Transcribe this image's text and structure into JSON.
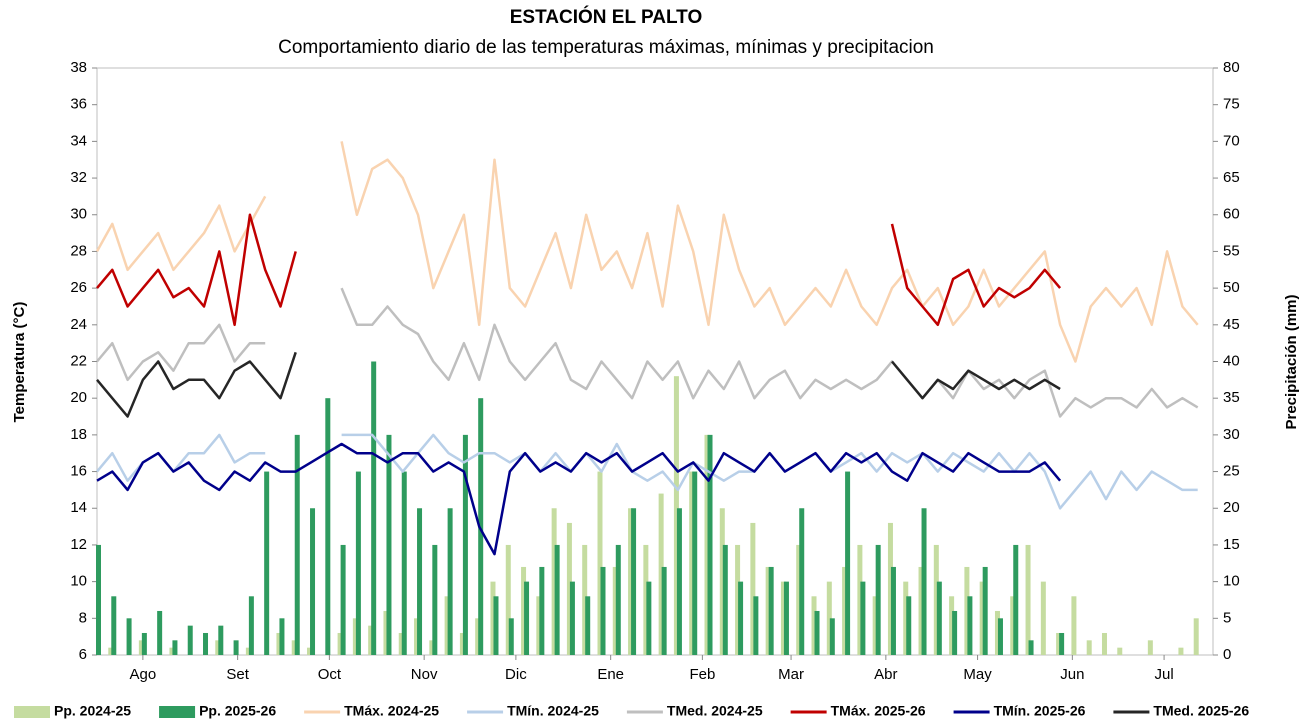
{
  "chart_data": {
    "type": "line",
    "title": "ESTACIÓN EL PALTO",
    "subtitle": "Comportamiento diario de las temperaturas máximas, mínimas y precipitacion",
    "y_label": "Temperatura (°C)",
    "y2_label": "Precipitación (mm)",
    "x": [
      0,
      5,
      10,
      15,
      20,
      25,
      30,
      35,
      40,
      45,
      50,
      55,
      60,
      65,
      70,
      75,
      80,
      85,
      90,
      95,
      100,
      105,
      110,
      115,
      120,
      125,
      130,
      135,
      140,
      145,
      150,
      155,
      160,
      165,
      170,
      175,
      180,
      185,
      190,
      195,
      200,
      205,
      210,
      215,
      220,
      225,
      230,
      235,
      240,
      245,
      250,
      255,
      260,
      265,
      270,
      275,
      280,
      285,
      290,
      295,
      300,
      305,
      310,
      315,
      320,
      325,
      330,
      335,
      340,
      345,
      350,
      355,
      360
    ],
    "xlim": [
      0,
      365
    ],
    "xticks": [
      {
        "value": 15,
        "label": "Ago"
      },
      {
        "value": 46,
        "label": "Set"
      },
      {
        "value": 76,
        "label": "Oct"
      },
      {
        "value": 107,
        "label": "Nov"
      },
      {
        "value": 137,
        "label": "Dic"
      },
      {
        "value": 168,
        "label": "Ene"
      },
      {
        "value": 198,
        "label": "Feb"
      },
      {
        "value": 227,
        "label": "Mar"
      },
      {
        "value": 258,
        "label": "Abr"
      },
      {
        "value": 288,
        "label": "May"
      },
      {
        "value": 319,
        "label": "Jun"
      },
      {
        "value": 349,
        "label": "Jul"
      }
    ],
    "ylim": [
      6,
      38
    ],
    "yticks": [
      6,
      8,
      10,
      12,
      14,
      16,
      18,
      20,
      22,
      24,
      26,
      28,
      30,
      32,
      34,
      36,
      38
    ],
    "y2lim": [
      0,
      80
    ],
    "y2ticks": [
      0,
      5,
      10,
      15,
      20,
      25,
      30,
      35,
      40,
      45,
      50,
      55,
      60,
      65,
      70,
      75,
      80
    ],
    "grid": false,
    "series": [
      {
        "name": "Pp. 2024-25",
        "kind": "bar",
        "axis": "y2",
        "color": "#c5dca0",
        "values": [
          0,
          1,
          0,
          2,
          0,
          1,
          0,
          0,
          2,
          0,
          1,
          0,
          3,
          2,
          1,
          0,
          3,
          5,
          4,
          6,
          3,
          5,
          2,
          8,
          3,
          5,
          10,
          15,
          12,
          8,
          20,
          18,
          15,
          25,
          12,
          20,
          15,
          22,
          38,
          25,
          30,
          20,
          15,
          18,
          12,
          10,
          15,
          8,
          10,
          12,
          15,
          8,
          18,
          10,
          12,
          15,
          8,
          12,
          10,
          6,
          8,
          15,
          10,
          3,
          8,
          2,
          3,
          1,
          0,
          2,
          0,
          1,
          5
        ]
      },
      {
        "name": "Pp. 2025-26",
        "kind": "bar",
        "axis": "y2",
        "color": "#2e9b5f",
        "values": [
          15,
          8,
          5,
          3,
          6,
          2,
          4,
          3,
          4,
          2,
          8,
          25,
          5,
          30,
          20,
          35,
          15,
          25,
          40,
          30,
          25,
          20,
          15,
          20,
          30,
          35,
          8,
          5,
          10,
          12,
          15,
          10,
          8,
          12,
          15,
          20,
          10,
          12,
          20,
          25,
          30,
          15,
          10,
          8,
          12,
          10,
          20,
          6,
          5,
          25,
          10,
          15,
          12,
          8,
          20,
          10,
          6,
          8,
          12,
          5,
          15,
          2,
          0,
          3,
          null,
          null,
          null,
          null,
          null,
          null,
          null,
          null,
          null
        ]
      },
      {
        "name": "TMáx. 2024-25",
        "kind": "line",
        "color": "#f9d3b0",
        "values": [
          28,
          29.5,
          27,
          28,
          29,
          27,
          28,
          29,
          30.5,
          28,
          29.5,
          31,
          null,
          null,
          null,
          null,
          34,
          30,
          32.5,
          33,
          32,
          30,
          26,
          28,
          30,
          24,
          33,
          26,
          25,
          27,
          29,
          26,
          30,
          27,
          28,
          26,
          29,
          25,
          30.5,
          28,
          24,
          30,
          27,
          25,
          26,
          24,
          25,
          26,
          25,
          27,
          25,
          24,
          26,
          27,
          25,
          26,
          24,
          25,
          27,
          25,
          26,
          27,
          28,
          24,
          22,
          25,
          26,
          25,
          26,
          24,
          28,
          25,
          24
        ]
      },
      {
        "name": "TMín. 2024-25",
        "kind": "line",
        "color": "#b8cfe8",
        "values": [
          16,
          17,
          15.5,
          16.5,
          17,
          16,
          17,
          17,
          18,
          16.5,
          17,
          17,
          null,
          null,
          null,
          null,
          18,
          18,
          18,
          17,
          16,
          17,
          18,
          17,
          16.5,
          17,
          17,
          16.5,
          17,
          16,
          17,
          16,
          17,
          16,
          17.5,
          16,
          15.5,
          16,
          15,
          16.5,
          16,
          15.5,
          16,
          16,
          17,
          16,
          16.5,
          17,
          16,
          16.5,
          17,
          16,
          17,
          16.5,
          17,
          16,
          17,
          16.5,
          16,
          17,
          16,
          17,
          16,
          14,
          15,
          16,
          14.5,
          16,
          15,
          16,
          15.5,
          15,
          15
        ]
      },
      {
        "name": "TMed. 2024-25",
        "kind": "line",
        "color": "#bfbfbf",
        "values": [
          22,
          23,
          21,
          22,
          22.5,
          21.5,
          23,
          23,
          24,
          22,
          23,
          23,
          null,
          null,
          null,
          null,
          26,
          24,
          24,
          25,
          24,
          23.5,
          22,
          21,
          23,
          21,
          24,
          22,
          21,
          22,
          23,
          21,
          20.5,
          22,
          21,
          20,
          22,
          21,
          22,
          20,
          21.5,
          20.5,
          22,
          20,
          21,
          21.5,
          20,
          21,
          20.5,
          21,
          20.5,
          21,
          22,
          21,
          20,
          21,
          20,
          21.5,
          20.5,
          21,
          20,
          21,
          21.5,
          19,
          20,
          19.5,
          20,
          20,
          19.5,
          20.5,
          19.5,
          20,
          19.5
        ]
      },
      {
        "name": "TMáx. 2025-26",
        "kind": "line",
        "color": "#c00000",
        "values": [
          26,
          27,
          25,
          26,
          27,
          25.5,
          26,
          25,
          28,
          24,
          30,
          27,
          25,
          28,
          null,
          null,
          null,
          null,
          null,
          null,
          null,
          null,
          null,
          null,
          null,
          null,
          null,
          null,
          null,
          null,
          null,
          null,
          null,
          null,
          null,
          null,
          null,
          null,
          null,
          null,
          null,
          null,
          null,
          null,
          null,
          null,
          null,
          null,
          null,
          null,
          null,
          null,
          29.5,
          26,
          25,
          24,
          26.5,
          27,
          25,
          26,
          25.5,
          26,
          27,
          26,
          null,
          null,
          null,
          null,
          null,
          null,
          null,
          null,
          null
        ]
      },
      {
        "name": "TMín. 2025-26",
        "kind": "line",
        "color": "#00008b",
        "values": [
          15.5,
          16,
          15,
          16.5,
          17,
          16,
          16.5,
          15.5,
          15,
          16,
          15.5,
          16.5,
          16,
          16,
          16.5,
          17,
          17.5,
          17,
          17,
          16.5,
          17,
          17,
          16,
          16.5,
          16,
          13,
          11.5,
          16,
          17,
          16,
          16.5,
          16,
          17,
          16.5,
          17,
          16,
          16.5,
          17,
          16,
          16.5,
          15.5,
          17,
          16.5,
          16,
          17,
          16,
          16.5,
          17,
          16,
          17,
          16.5,
          17,
          16,
          15.5,
          17,
          16.5,
          16,
          17,
          16.5,
          16,
          16,
          16,
          16.5,
          15.5,
          null,
          null,
          null,
          null,
          null,
          null,
          null,
          null,
          null
        ]
      },
      {
        "name": "TMed. 2025-26",
        "kind": "line",
        "color": "#262626",
        "values": [
          21,
          20,
          19,
          21,
          22,
          20.5,
          21,
          21,
          20,
          21.5,
          22,
          21,
          20,
          22.5,
          null,
          null,
          null,
          null,
          null,
          null,
          null,
          null,
          null,
          null,
          null,
          null,
          null,
          null,
          null,
          null,
          null,
          null,
          null,
          null,
          null,
          null,
          null,
          null,
          null,
          null,
          null,
          null,
          null,
          null,
          null,
          null,
          null,
          null,
          null,
          null,
          null,
          null,
          22,
          21,
          20,
          21,
          20.5,
          21.5,
          21,
          20.5,
          21,
          20.5,
          21,
          20.5,
          null,
          null,
          null,
          null,
          null,
          null,
          null,
          null,
          null
        ]
      }
    ]
  }
}
